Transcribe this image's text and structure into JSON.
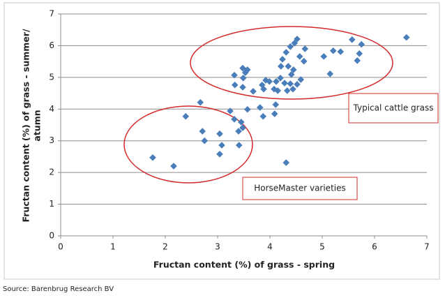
{
  "chart_data": {
    "type": "scatter",
    "xlabel": "Fructan content (%) of grass - spring",
    "ylabel": [
      "Fructan content (%) of grass - summer/",
      "atumn"
    ],
    "x": [
      1.76,
      2.16,
      2.39,
      2.67,
      2.71,
      2.75,
      3.04,
      3.08,
      3.04,
      3.24,
      3.32,
      3.32,
      3.33,
      3.4,
      3.41,
      3.45,
      3.48,
      3.48,
      3.49,
      3.48,
      3.53,
      3.57,
      3.57,
      3.68,
      3.81,
      3.85,
      3.87,
      3.88,
      3.92,
      3.99,
      4.08,
      4.09,
      4.11,
      4.12,
      4.15,
      4.2,
      4.21,
      4.28,
      4.24,
      4.31,
      4.31,
      4.33,
      4.35,
      4.39,
      4.39,
      4.41,
      4.44,
      4.45,
      4.47,
      4.52,
      4.52,
      4.57,
      4.59,
      4.65,
      4.67,
      5.03,
      5.15,
      5.21,
      5.35,
      5.57,
      5.67,
      5.71,
      5.75,
      6.61
    ],
    "values": [
      2.47,
      2.2,
      3.77,
      4.21,
      3.3,
      3.0,
      3.22,
      2.86,
      2.58,
      3.94,
      3.68,
      5.07,
      4.76,
      3.3,
      2.86,
      3.59,
      3.41,
      4.69,
      4.98,
      5.29,
      5.15,
      5.24,
      3.99,
      4.56,
      4.05,
      4.76,
      3.77,
      4.63,
      4.91,
      4.87,
      4.63,
      3.85,
      4.14,
      4.87,
      4.58,
      4.98,
      5.35,
      4.82,
      5.57,
      5.79,
      2.31,
      4.58,
      5.35,
      5.97,
      4.8,
      5.09,
      4.63,
      5.24,
      6.08,
      6.21,
      4.78,
      5.66,
      4.93,
      5.51,
      5.9,
      5.66,
      5.11,
      5.84,
      5.81,
      6.19,
      5.53,
      5.75,
      6.04,
      6.26
    ],
    "color": "#4a7ebb",
    "xlim": [
      0,
      7
    ],
    "xticks": [
      0,
      1,
      2,
      3,
      4,
      5,
      6,
      7
    ],
    "ylim": [
      0,
      7
    ],
    "yticks": [
      0,
      1,
      2,
      3,
      4,
      5,
      6,
      7
    ],
    "grid": true,
    "annotations": [
      "Typical cattle grass",
      "HorseMaster varieties"
    ],
    "source": "Source: Barenbrug Research BV"
  }
}
